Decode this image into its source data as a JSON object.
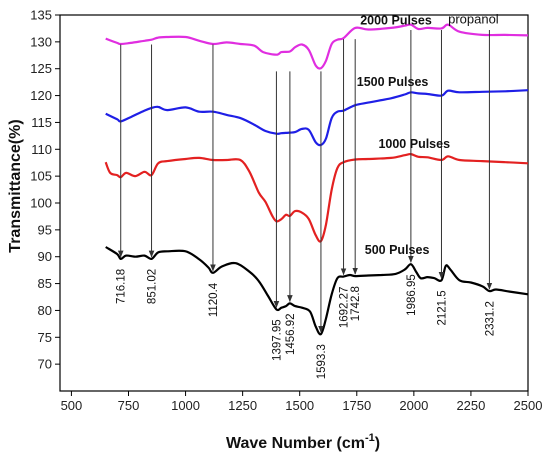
{
  "chart_data": {
    "type": "line",
    "title": "",
    "xlabel": "Wave Number (cm",
    "xlabel_sup": "-1",
    "xlabel_close": ")",
    "ylabel": "Transmittance(%)",
    "xlim": [
      450,
      2500
    ],
    "ylim": [
      65,
      135
    ],
    "x_ticks": [
      "500",
      "750",
      "1000",
      "1250",
      "1500",
      "1750",
      "2000",
      "2250",
      "2500"
    ],
    "y_ticks": [
      "70",
      "75",
      "80",
      "85",
      "90",
      "95",
      "100",
      "105",
      "110",
      "115",
      "120",
      "125",
      "130",
      "135"
    ],
    "grid": false,
    "series": [
      {
        "name": "500 Pulses",
        "color": "#000000",
        "label_at": [
          1785,
          90.5
        ],
        "points": [
          [
            650,
            91.8
          ],
          [
            700,
            90.5
          ],
          [
            716,
            89.6
          ],
          [
            740,
            90.2
          ],
          [
            780,
            90.0
          ],
          [
            820,
            90.2
          ],
          [
            851,
            89.6
          ],
          [
            880,
            90.8
          ],
          [
            920,
            91.0
          ],
          [
            1000,
            91.0
          ],
          [
            1060,
            89.5
          ],
          [
            1100,
            88.0
          ],
          [
            1120,
            87.0
          ],
          [
            1160,
            88.2
          ],
          [
            1220,
            88.8
          ],
          [
            1280,
            87.2
          ],
          [
            1320,
            85.5
          ],
          [
            1360,
            82.8
          ],
          [
            1398,
            80.2
          ],
          [
            1420,
            80.5
          ],
          [
            1440,
            80.8
          ],
          [
            1457,
            81.3
          ],
          [
            1480,
            80.8
          ],
          [
            1510,
            80.5
          ],
          [
            1545,
            79.8
          ],
          [
            1570,
            77.0
          ],
          [
            1593,
            75.6
          ],
          [
            1615,
            78.5
          ],
          [
            1640,
            83.0
          ],
          [
            1665,
            86.0
          ],
          [
            1692,
            86.3
          ],
          [
            1720,
            86.6
          ],
          [
            1743,
            86.4
          ],
          [
            1800,
            86.5
          ],
          [
            1860,
            86.6
          ],
          [
            1920,
            86.8
          ],
          [
            1960,
            87.6
          ],
          [
            1987,
            88.6
          ],
          [
            2010,
            87.2
          ],
          [
            2030,
            86.0
          ],
          [
            2060,
            86.2
          ],
          [
            2090,
            86.0
          ],
          [
            2121,
            85.6
          ],
          [
            2140,
            88.3
          ],
          [
            2160,
            87.6
          ],
          [
            2200,
            85.6
          ],
          [
            2250,
            85.2
          ],
          [
            2300,
            84.5
          ],
          [
            2331,
            83.6
          ],
          [
            2360,
            83.9
          ],
          [
            2420,
            83.5
          ],
          [
            2500,
            83.0
          ]
        ]
      },
      {
        "name": "1000 Pulses",
        "color": "#e32121",
        "label_at": [
          1845,
          110.2
        ],
        "points": [
          [
            650,
            107.6
          ],
          [
            670,
            105.6
          ],
          [
            700,
            105.2
          ],
          [
            716,
            104.8
          ],
          [
            740,
            105.6
          ],
          [
            780,
            105.0
          ],
          [
            820,
            105.8
          ],
          [
            851,
            105.2
          ],
          [
            880,
            107.4
          ],
          [
            920,
            107.8
          ],
          [
            1000,
            108.2
          ],
          [
            1060,
            108.4
          ],
          [
            1120,
            108.0
          ],
          [
            1180,
            108.0
          ],
          [
            1240,
            108.0
          ],
          [
            1280,
            105.8
          ],
          [
            1320,
            102.0
          ],
          [
            1350,
            100.2
          ],
          [
            1380,
            97.6
          ],
          [
            1398,
            96.6
          ],
          [
            1420,
            97.0
          ],
          [
            1440,
            97.8
          ],
          [
            1457,
            97.6
          ],
          [
            1480,
            98.5
          ],
          [
            1510,
            98.2
          ],
          [
            1540,
            97.0
          ],
          [
            1570,
            94.0
          ],
          [
            1593,
            92.9
          ],
          [
            1615,
            96.0
          ],
          [
            1640,
            102.5
          ],
          [
            1665,
            106.5
          ],
          [
            1692,
            107.6
          ],
          [
            1743,
            108.1
          ],
          [
            1800,
            108.2
          ],
          [
            1900,
            108.4
          ],
          [
            1960,
            108.9
          ],
          [
            1987,
            109.1
          ],
          [
            2020,
            108.6
          ],
          [
            2060,
            108.5
          ],
          [
            2121,
            108.0
          ],
          [
            2150,
            108.7
          ],
          [
            2200,
            108.0
          ],
          [
            2300,
            107.8
          ],
          [
            2400,
            107.6
          ],
          [
            2500,
            107.4
          ]
        ]
      },
      {
        "name": "1500 Pulses",
        "color": "#1f1fe6",
        "label_at": [
          1750,
          121.8
        ],
        "points": [
          [
            650,
            116.6
          ],
          [
            700,
            115.6
          ],
          [
            716,
            115.2
          ],
          [
            760,
            116.0
          ],
          [
            820,
            117.2
          ],
          [
            851,
            117.7
          ],
          [
            880,
            117.9
          ],
          [
            920,
            117.3
          ],
          [
            1000,
            117.8
          ],
          [
            1060,
            117.0
          ],
          [
            1120,
            117.0
          ],
          [
            1180,
            116.4
          ],
          [
            1240,
            115.8
          ],
          [
            1300,
            114.6
          ],
          [
            1350,
            113.4
          ],
          [
            1398,
            112.9
          ],
          [
            1420,
            113.0
          ],
          [
            1457,
            113.1
          ],
          [
            1480,
            113.2
          ],
          [
            1510,
            113.8
          ],
          [
            1540,
            113.6
          ],
          [
            1570,
            111.3
          ],
          [
            1593,
            110.8
          ],
          [
            1615,
            112.0
          ],
          [
            1640,
            115.8
          ],
          [
            1665,
            117.0
          ],
          [
            1692,
            117.2
          ],
          [
            1743,
            118.2
          ],
          [
            1800,
            118.7
          ],
          [
            1900,
            119.5
          ],
          [
            1960,
            120.2
          ],
          [
            1987,
            120.6
          ],
          [
            2020,
            120.4
          ],
          [
            2060,
            120.3
          ],
          [
            2121,
            120.0
          ],
          [
            2150,
            120.9
          ],
          [
            2200,
            120.6
          ],
          [
            2300,
            120.7
          ],
          [
            2400,
            120.8
          ],
          [
            2500,
            121.0
          ]
        ]
      },
      {
        "name": "2000 Pulses",
        "color": "#e02ee0",
        "label_at": [
          1765,
          133.2
        ],
        "points": [
          [
            650,
            130.6
          ],
          [
            700,
            129.8
          ],
          [
            716,
            129.6
          ],
          [
            760,
            129.8
          ],
          [
            820,
            130.2
          ],
          [
            851,
            130.4
          ],
          [
            880,
            130.8
          ],
          [
            920,
            130.9
          ],
          [
            1000,
            130.9
          ],
          [
            1060,
            130.2
          ],
          [
            1120,
            129.6
          ],
          [
            1180,
            129.9
          ],
          [
            1240,
            129.6
          ],
          [
            1300,
            129.3
          ],
          [
            1340,
            128.1
          ],
          [
            1398,
            127.6
          ],
          [
            1420,
            128.1
          ],
          [
            1457,
            128.2
          ],
          [
            1480,
            129.0
          ],
          [
            1510,
            129.5
          ],
          [
            1540,
            128.5
          ],
          [
            1570,
            125.6
          ],
          [
            1593,
            125.1
          ],
          [
            1615,
            126.5
          ],
          [
            1640,
            129.6
          ],
          [
            1665,
            130.4
          ],
          [
            1692,
            130.7
          ],
          [
            1743,
            132.6
          ],
          [
            1800,
            132.3
          ],
          [
            1900,
            132.6
          ],
          [
            1960,
            133.0
          ],
          [
            1987,
            133.2
          ],
          [
            2020,
            132.4
          ],
          [
            2060,
            132.6
          ],
          [
            2121,
            132.5
          ],
          [
            2150,
            133.2
          ],
          [
            2200,
            131.9
          ],
          [
            2300,
            131.3
          ],
          [
            2400,
            131.3
          ],
          [
            2500,
            131.2
          ]
        ]
      }
    ],
    "annotations": [
      {
        "text": "propanol",
        "x": 2150,
        "y": 133.4
      },
      {
        "text": "716.18",
        "x": 716
      },
      {
        "text": "851.02",
        "x": 851
      },
      {
        "text": "1120.4",
        "x": 1120
      },
      {
        "text": "1397.95",
        "x": 1398
      },
      {
        "text": "1456.92",
        "x": 1457
      },
      {
        "text": "1593.3",
        "x": 1593
      },
      {
        "text": "1692.27",
        "x": 1692
      },
      {
        "text": "1742.8",
        "x": 1743
      },
      {
        "text": "1986.95",
        "x": 1987
      },
      {
        "text": "2121.5",
        "x": 2121
      },
      {
        "text": "2331.2",
        "x": 2331
      }
    ]
  }
}
